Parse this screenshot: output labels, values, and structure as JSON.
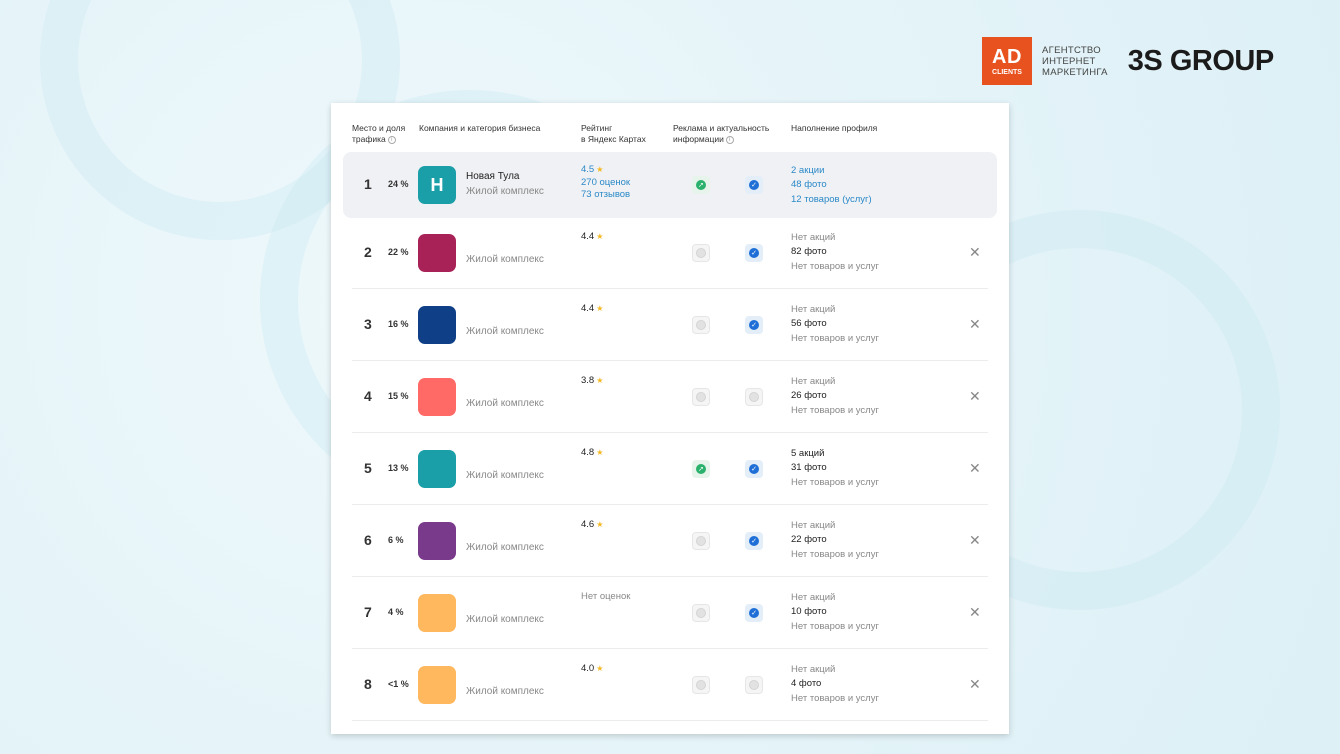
{
  "brand": {
    "ad_big": "AD",
    "ad_small": "CLIENTS",
    "agency_line1": "АГЕНТСТВО",
    "agency_line2": "ИНТЕРНЕТ",
    "agency_line3": "МАРКЕТИНГА",
    "group": "3S GROUP",
    "ad_color": "#e8521f"
  },
  "table": {
    "headers": {
      "place_line1": "Место и доля",
      "place_line2": "трафика",
      "company": "Компания и категория бизнеса",
      "rating_line1": "Рейтинг",
      "rating_line2": "в Яндекс Картах",
      "ads_line1": "Реклама и актуальность",
      "ads_line2": "информации",
      "profile": "Наполнение профиля",
      "info_icon": "i"
    },
    "rows": [
      {
        "rank": "1",
        "share": "24 %",
        "letter": "Н",
        "thumb_color": "#1a9ea8",
        "name": "Новая Тула",
        "category": "Жилой комплекс",
        "rating": "4.5",
        "rating_extra1": "270 оценок",
        "rating_extra2": "73 отзывов",
        "ad": true,
        "actual": true,
        "promos": "2 акции",
        "photos": "48 фото",
        "goods": "12 товаров (услуг)",
        "close": ""
      },
      {
        "rank": "2",
        "share": "22 %",
        "letter": "",
        "thumb_color": "#a82257",
        "name": "",
        "category": "Жилой комплекс",
        "rating": "4.4",
        "rating_extra1": "",
        "rating_extra2": "",
        "ad": false,
        "actual": true,
        "promos": "Нет акций",
        "photos": "82 фото",
        "goods": "Нет товаров и услуг",
        "close": "✕"
      },
      {
        "rank": "3",
        "share": "16 %",
        "letter": "",
        "thumb_color": "#0e3f87",
        "name": "",
        "category": "Жилой комплекс",
        "rating": "4.4",
        "rating_extra1": "",
        "rating_extra2": "",
        "ad": false,
        "actual": true,
        "promos": "Нет акций",
        "photos": "56 фото",
        "goods": "Нет товаров и услуг",
        "close": "✕"
      },
      {
        "rank": "4",
        "share": "15 %",
        "letter": "",
        "thumb_color": "#ff6a66",
        "name": "",
        "category": "Жилой комплекс",
        "rating": "3.8",
        "rating_extra1": "",
        "rating_extra2": "",
        "ad": false,
        "actual": false,
        "promos": "Нет акций",
        "photos": "26 фото",
        "goods": "Нет товаров и услуг",
        "close": "✕"
      },
      {
        "rank": "5",
        "share": "13 %",
        "letter": "",
        "thumb_color": "#1a9ea8",
        "name": "",
        "category": "Жилой комплекс",
        "rating": "4.8",
        "rating_extra1": "",
        "rating_extra2": "",
        "ad": true,
        "actual": true,
        "promos": "5 акций",
        "photos": "31 фото",
        "goods": "Нет товаров и услуг",
        "close": "✕"
      },
      {
        "rank": "6",
        "share": "6 %",
        "letter": "",
        "thumb_color": "#7a3a8c",
        "name": "",
        "category": "Жилой комплекс",
        "rating": "4.6",
        "rating_extra1": "",
        "rating_extra2": "",
        "ad": false,
        "actual": true,
        "promos": "Нет акций",
        "photos": "22 фото",
        "goods": "Нет товаров и услуг",
        "close": "✕"
      },
      {
        "rank": "7",
        "share": "4 %",
        "letter": "",
        "thumb_color": "#ffb85e",
        "name": "",
        "category": "Жилой комплекс",
        "rating": "Нет оценок",
        "rating_extra1": "",
        "rating_extra2": "",
        "ad": false,
        "actual": true,
        "promos": "Нет акций",
        "photos": "10 фото",
        "goods": "Нет товаров и услуг",
        "close": "✕"
      },
      {
        "rank": "8",
        "share": "<1 %",
        "letter": "",
        "thumb_color": "#ffb85e",
        "name": "",
        "category": "Жилой комплекс",
        "rating": "4.0",
        "rating_extra1": "",
        "rating_extra2": "",
        "ad": false,
        "actual": false,
        "promos": "Нет акций",
        "photos": "4 фото",
        "goods": "Нет товаров и услуг",
        "close": "✕"
      }
    ]
  }
}
